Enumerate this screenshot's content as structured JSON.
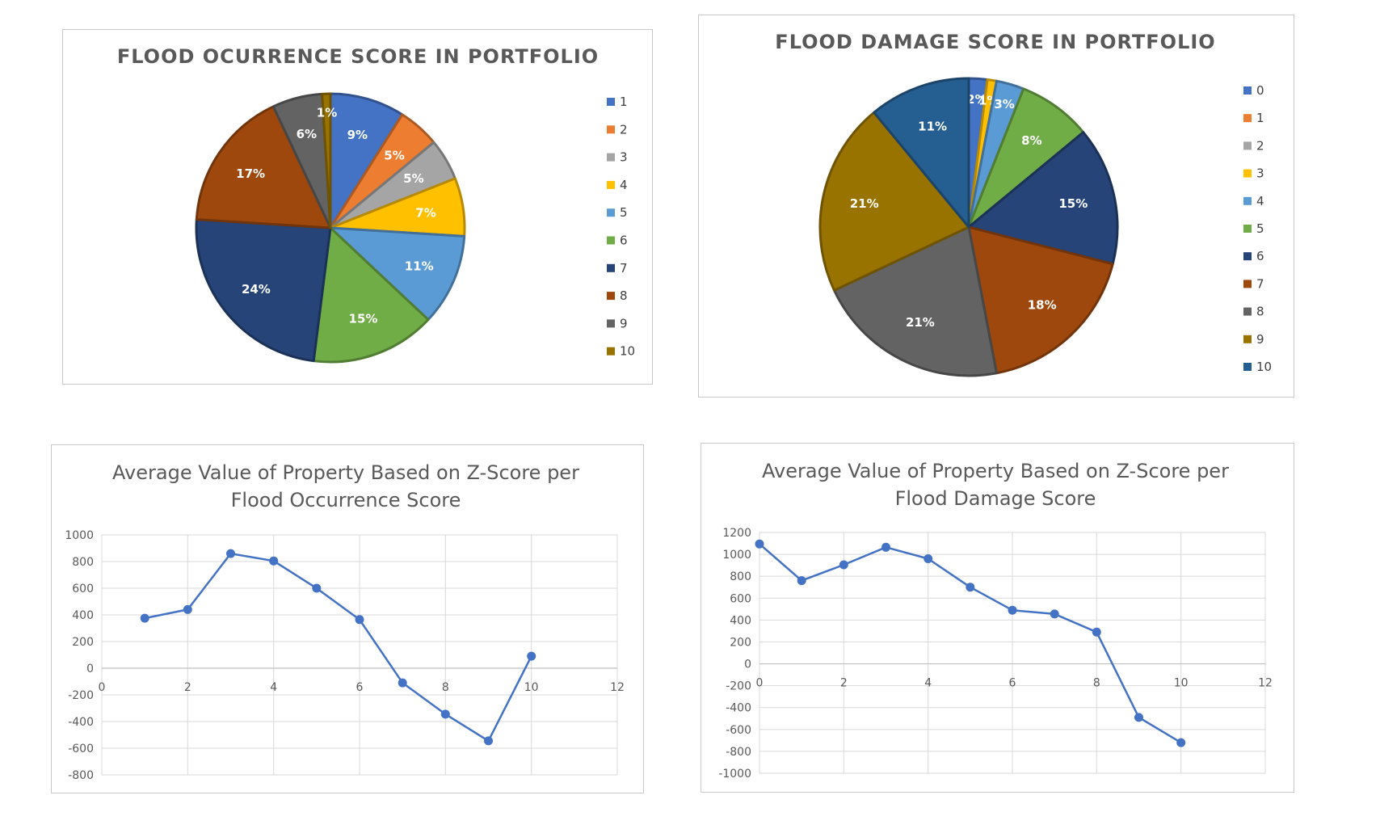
{
  "chart_data": [
    {
      "type": "pie",
      "title": "FLOOD OCURRENCE SCORE IN PORTFOLIO",
      "categories": [
        "1",
        "2",
        "3",
        "4",
        "5",
        "6",
        "7",
        "8",
        "9",
        "10"
      ],
      "values": [
        9,
        5,
        5,
        7,
        11,
        15,
        24,
        17,
        6,
        1
      ],
      "labels": [
        "9%",
        "5%",
        "5%",
        "7%",
        "11%",
        "15%",
        "24%",
        "17%",
        "6%",
        "1%"
      ],
      "colors": [
        "#4472C4",
        "#ED7D31",
        "#A5A5A5",
        "#FFC000",
        "#5B9BD5",
        "#70AD47",
        "#264478",
        "#9E480E",
        "#636363",
        "#997300"
      ],
      "legend": "right"
    },
    {
      "type": "pie",
      "title": "FLOOD DAMAGE SCORE IN PORTFOLIO",
      "categories": [
        "0",
        "1",
        "2",
        "3",
        "4",
        "5",
        "6",
        "7",
        "8",
        "9",
        "10"
      ],
      "values": [
        2,
        0,
        0,
        1,
        3,
        8,
        15,
        18,
        21,
        21,
        11
      ],
      "labels": [
        "2%",
        "",
        "",
        "1%",
        "3%",
        "8%",
        "15%",
        "18%",
        "21%",
        "21%",
        "11%"
      ],
      "colors": [
        "#4472C4",
        "#ED7D31",
        "#A5A5A5",
        "#FFC000",
        "#5B9BD5",
        "#70AD47",
        "#264478",
        "#9E480E",
        "#636363",
        "#997300",
        "#255E91"
      ],
      "legend": "right"
    },
    {
      "type": "line",
      "title": "Average Value of Property Based on Z-Score per Flood Occurrence Score",
      "title_lines": [
        "Average Value of Property Based on Z-Score per",
        "Flood Occurrence Score"
      ],
      "x": [
        1,
        2,
        3,
        4,
        5,
        6,
        7,
        8,
        9,
        10
      ],
      "y": [
        375,
        440,
        860,
        805,
        600,
        365,
        -110,
        -345,
        -545,
        90
      ],
      "xlim": [
        0,
        12
      ],
      "xticks": [
        0,
        2,
        4,
        6,
        8,
        10,
        12
      ],
      "ylim": [
        -800,
        1000
      ],
      "yticks": [
        -800,
        -600,
        -400,
        -200,
        0,
        200,
        400,
        600,
        800,
        1000
      ],
      "color": "#4472C4",
      "grid": true
    },
    {
      "type": "line",
      "title": "Average Value of Property Based on Z-Score per Flood Damage Score",
      "title_lines": [
        "Average Value of Property Based on Z-Score per",
        "Flood Damage Score"
      ],
      "x": [
        0,
        1,
        2,
        3,
        4,
        5,
        6,
        7,
        8,
        9,
        10
      ],
      "y": [
        1095,
        760,
        905,
        1065,
        960,
        700,
        490,
        455,
        290,
        -490,
        -720
      ],
      "xlim": [
        0,
        12
      ],
      "xticks": [
        0,
        2,
        4,
        6,
        8,
        10,
        12
      ],
      "ylim": [
        -1000,
        1200
      ],
      "yticks": [
        -1000,
        -800,
        -600,
        -400,
        -200,
        0,
        200,
        400,
        600,
        800,
        1000,
        1200
      ],
      "color": "#4472C4",
      "grid": true
    }
  ]
}
